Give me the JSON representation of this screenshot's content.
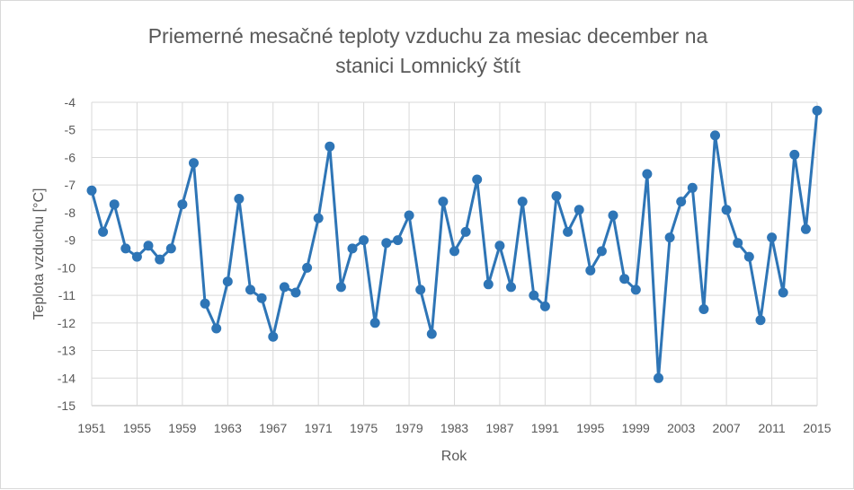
{
  "chart_data": {
    "type": "line",
    "title_line1": "Priemerné mesačné teploty vzduchu za mesiac december na",
    "title_line2": "stanici Lomnický štít",
    "xlabel": "Rok",
    "ylabel": "Teplota vzduchu [°C]",
    "ylim": [
      -15,
      -4
    ],
    "xlim": [
      1951,
      2015
    ],
    "x_ticks": [
      1951,
      1955,
      1959,
      1963,
      1967,
      1971,
      1975,
      1979,
      1983,
      1987,
      1991,
      1995,
      1999,
      2003,
      2007,
      2011,
      2015
    ],
    "y_ticks": [
      -4,
      -5,
      -6,
      -7,
      -8,
      -9,
      -10,
      -11,
      -12,
      -13,
      -14,
      -15
    ],
    "grid": true,
    "series_color": "#2e75b6",
    "x": [
      1951,
      1952,
      1953,
      1954,
      1955,
      1956,
      1957,
      1958,
      1959,
      1960,
      1961,
      1962,
      1963,
      1964,
      1965,
      1966,
      1967,
      1968,
      1969,
      1970,
      1971,
      1972,
      1973,
      1974,
      1975,
      1976,
      1977,
      1978,
      1979,
      1980,
      1981,
      1982,
      1983,
      1984,
      1985,
      1986,
      1987,
      1988,
      1989,
      1990,
      1991,
      1992,
      1993,
      1994,
      1995,
      1996,
      1997,
      1998,
      1999,
      2000,
      2001,
      2002,
      2003,
      2004,
      2005,
      2006,
      2007,
      2008,
      2009,
      2010,
      2011,
      2012,
      2013,
      2014,
      2015
    ],
    "values": [
      -7.2,
      -8.7,
      -7.7,
      -9.3,
      -9.6,
      -9.2,
      -9.7,
      -9.3,
      -7.7,
      -6.2,
      -11.3,
      -12.2,
      -10.5,
      -7.5,
      -10.8,
      -11.1,
      -12.5,
      -10.7,
      -10.9,
      -10.0,
      -8.2,
      -5.6,
      -10.7,
      -9.3,
      -9.0,
      -12.0,
      -9.1,
      -9.0,
      -8.1,
      -10.8,
      -12.4,
      -7.6,
      -9.4,
      -8.7,
      -6.8,
      -10.6,
      -9.2,
      -10.7,
      -7.6,
      -11.0,
      -11.4,
      -7.4,
      -8.7,
      -7.9,
      -10.1,
      -9.4,
      -8.1,
      -10.4,
      -10.8,
      -6.6,
      -14.0,
      -8.9,
      -7.6,
      -7.1,
      -11.5,
      -5.2,
      -7.9,
      -9.1,
      -9.6,
      -11.9,
      -8.9,
      -10.9,
      -5.9,
      -8.6,
      -4.3
    ]
  }
}
